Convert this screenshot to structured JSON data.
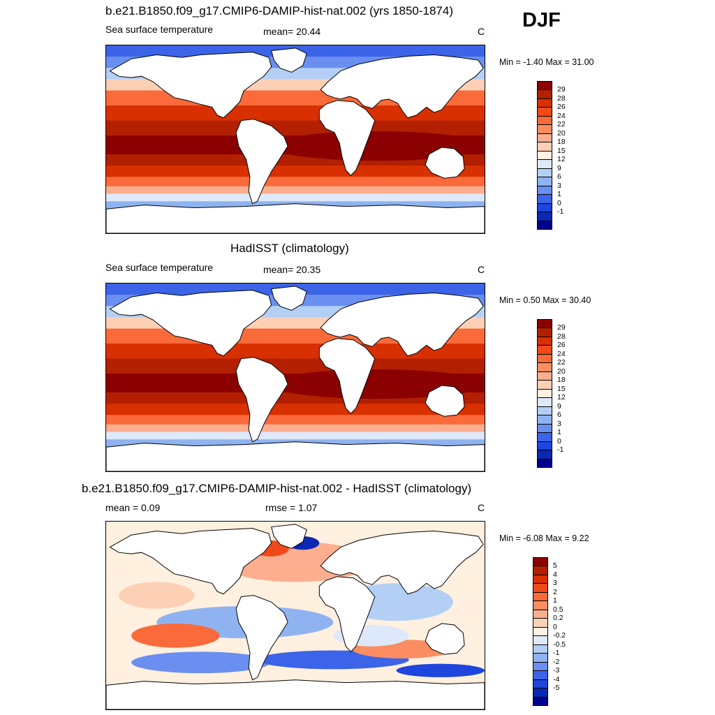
{
  "season": "DJF",
  "panels": [
    {
      "title": "b.e21.B1850.f09_g17.CMIP6-DAMIP-hist-nat.002 (yrs 1850-1874)",
      "left_label": "Sea surface temperature",
      "center_label": "mean=  20.44",
      "units": "C",
      "minmax": "Min =  -1.40 Max =  31.00",
      "map_kind": "absolute",
      "colorbar": {
        "colors": [
          "#8b0000",
          "#b22000",
          "#d83000",
          "#f04a18",
          "#fa6a3a",
          "#fc8d62",
          "#fdae8f",
          "#fdd0b6",
          "#fff0e0",
          "#dde9fa",
          "#b3cff5",
          "#8fb3f0",
          "#6a8ff0",
          "#3c64e8",
          "#1e46dc",
          "#0a28b4",
          "#00008c"
        ],
        "labels": [
          "29",
          "28",
          "26",
          "24",
          "22",
          "20",
          "18",
          "15",
          "12",
          "9",
          "6",
          "3",
          "1",
          "0",
          "-1"
        ]
      }
    },
    {
      "title": "HadISST (climatology)",
      "left_label": "Sea surface temperature",
      "center_label": "mean=  20.35",
      "units": "C",
      "minmax": "Min =   0.50 Max =  30.40",
      "map_kind": "absolute",
      "colorbar": {
        "colors": [
          "#8b0000",
          "#b22000",
          "#d83000",
          "#f04a18",
          "#fa6a3a",
          "#fc8d62",
          "#fdae8f",
          "#fdd0b6",
          "#fff0e0",
          "#dde9fa",
          "#b3cff5",
          "#8fb3f0",
          "#6a8ff0",
          "#3c64e8",
          "#1e46dc",
          "#0a28b4",
          "#00008c"
        ],
        "labels": [
          "29",
          "28",
          "26",
          "24",
          "22",
          "20",
          "18",
          "15",
          "12",
          "9",
          "6",
          "3",
          "1",
          "0",
          "-1"
        ]
      }
    },
    {
      "title": "b.e21.B1850.f09_g17.CMIP6-DAMIP-hist-nat.002 - HadISST (climatology)",
      "left_label": "mean =   0.09",
      "center_label": "rmse =   1.07",
      "units": "C",
      "minmax": "Min =  -6.08 Max =   9.22",
      "map_kind": "difference",
      "colorbar": {
        "colors": [
          "#8b0000",
          "#b22000",
          "#d83000",
          "#f04a18",
          "#fa6a3a",
          "#fc8d62",
          "#fdae8f",
          "#fdd0b6",
          "#fff0e0",
          "#dde9fa",
          "#b3cff5",
          "#8fb3f0",
          "#6a8ff0",
          "#3c64e8",
          "#1e46dc",
          "#0a28b4",
          "#00008c"
        ],
        "labels": [
          "5",
          "4",
          "3",
          "2",
          "1",
          "0.5",
          "0.2",
          "0",
          "-0.2",
          "-0.5",
          "-1",
          "-2",
          "-3",
          "-4",
          "-5"
        ]
      }
    }
  ]
}
